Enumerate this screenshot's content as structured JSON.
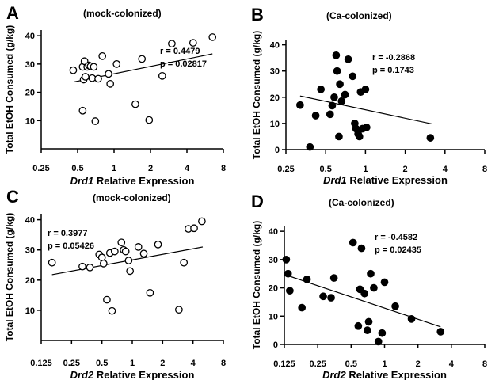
{
  "chart_data": [
    {
      "type": "scatter",
      "panel": "A",
      "title": "(mock-colonized)",
      "gene": "Drd1",
      "xlabel_suffix": " Relative Expression",
      "ylabel": "Total EtOH Consumed (g/kg)",
      "x_scale": "log2",
      "xlim": [
        0.25,
        8
      ],
      "ylim": [
        0,
        42
      ],
      "x_ticks": [
        0.25,
        0.5,
        1,
        2,
        4,
        8
      ],
      "x_tick_labels": [
        "0.25",
        "0.5",
        "1",
        "2",
        "4",
        "8"
      ],
      "y_ticks": [
        10,
        20,
        30,
        40
      ],
      "y_tick_labels": [
        "10",
        "20",
        "30",
        "40"
      ],
      "marker": "open",
      "r_label": "r = 0.4479",
      "p_label": "p = 0.02817",
      "fit": {
        "x": [
          0.47,
          6.5
        ],
        "y": [
          23.7,
          33.6
        ]
      },
      "points": [
        {
          "x": 0.46,
          "y": 27.8
        },
        {
          "x": 0.55,
          "y": 29.0
        },
        {
          "x": 0.56,
          "y": 24.5
        },
        {
          "x": 0.57,
          "y": 31.0
        },
        {
          "x": 0.58,
          "y": 25.5
        },
        {
          "x": 0.6,
          "y": 29.0
        },
        {
          "x": 0.62,
          "y": 29.5
        },
        {
          "x": 0.64,
          "y": 29.2
        },
        {
          "x": 0.66,
          "y": 25.0
        },
        {
          "x": 0.68,
          "y": 29.0
        },
        {
          "x": 0.74,
          "y": 24.8
        },
        {
          "x": 0.8,
          "y": 32.8
        },
        {
          "x": 0.9,
          "y": 26.5
        },
        {
          "x": 0.93,
          "y": 23.0
        },
        {
          "x": 1.05,
          "y": 30.0
        },
        {
          "x": 0.55,
          "y": 13.5
        },
        {
          "x": 0.7,
          "y": 9.8
        },
        {
          "x": 1.5,
          "y": 15.8
        },
        {
          "x": 1.7,
          "y": 31.8
        },
        {
          "x": 1.95,
          "y": 10.2
        },
        {
          "x": 2.5,
          "y": 25.8
        },
        {
          "x": 3.0,
          "y": 37.2
        },
        {
          "x": 4.5,
          "y": 37.5
        },
        {
          "x": 6.5,
          "y": 39.5
        }
      ]
    },
    {
      "type": "scatter",
      "panel": "B",
      "title": "(Ca-colonized)",
      "gene": "Drd1",
      "xlabel_suffix": " Relative Expression",
      "ylabel": "Total EtOH Consumed (g/kg)",
      "x_scale": "log2",
      "xlim": [
        0.25,
        8
      ],
      "ylim": [
        0,
        42
      ],
      "x_ticks": [
        0.25,
        0.5,
        1,
        2,
        4,
        8
      ],
      "x_tick_labels": [
        "0.25",
        "0.5",
        "1",
        "2",
        "4",
        "8"
      ],
      "y_ticks": [
        0,
        10,
        20,
        30,
        40
      ],
      "y_tick_labels": [
        "0",
        "10",
        "20",
        "30",
        "40"
      ],
      "marker": "filled",
      "r_label": "r = -0.2868",
      "p_label": "p = 0.1743",
      "fit": {
        "x": [
          0.32,
          3.2
        ],
        "y": [
          20.5,
          9.8
        ]
      },
      "points": [
        {
          "x": 0.32,
          "y": 17.0
        },
        {
          "x": 0.38,
          "y": 1.0
        },
        {
          "x": 0.42,
          "y": 13.0
        },
        {
          "x": 0.46,
          "y": 23.0
        },
        {
          "x": 0.54,
          "y": 13.5
        },
        {
          "x": 0.56,
          "y": 16.8
        },
        {
          "x": 0.58,
          "y": 20.0
        },
        {
          "x": 0.6,
          "y": 36.0
        },
        {
          "x": 0.61,
          "y": 30.0
        },
        {
          "x": 0.63,
          "y": 5.0
        },
        {
          "x": 0.64,
          "y": 25.0
        },
        {
          "x": 0.66,
          "y": 18.5
        },
        {
          "x": 0.7,
          "y": 21.0
        },
        {
          "x": 0.74,
          "y": 34.5
        },
        {
          "x": 0.8,
          "y": 28.0
        },
        {
          "x": 0.83,
          "y": 10.0
        },
        {
          "x": 0.85,
          "y": 8.0
        },
        {
          "x": 0.88,
          "y": 6.0
        },
        {
          "x": 0.9,
          "y": 5.0
        },
        {
          "x": 0.92,
          "y": 22.0
        },
        {
          "x": 0.95,
          "y": 8.0
        },
        {
          "x": 1.0,
          "y": 23.0
        },
        {
          "x": 1.02,
          "y": 8.5
        },
        {
          "x": 3.1,
          "y": 4.5
        }
      ]
    },
    {
      "type": "scatter",
      "panel": "C",
      "title": "(mock-colonized)",
      "gene": "Drd2",
      "xlabel_suffix": " Relative Expression",
      "ylabel": "Total EtOH Consumed (g/kg)",
      "x_scale": "log2",
      "xlim": [
        0.125,
        8
      ],
      "ylim": [
        0,
        42
      ],
      "x_ticks": [
        0.125,
        0.25,
        0.5,
        1,
        2,
        4,
        8
      ],
      "x_tick_labels": [
        "0.125",
        "0.25",
        "0.5",
        "1",
        "2",
        "4",
        "8"
      ],
      "y_ticks": [
        10,
        20,
        30,
        40
      ],
      "y_tick_labels": [
        "10",
        "20",
        "30",
        "40"
      ],
      "marker": "open",
      "r_label": "r = 0.3977",
      "p_label": "p = 0.05426",
      "fit": {
        "x": [
          0.16,
          5.0
        ],
        "y": [
          21.8,
          31.0
        ]
      },
      "points": [
        {
          "x": 0.16,
          "y": 25.8
        },
        {
          "x": 0.32,
          "y": 24.5
        },
        {
          "x": 0.38,
          "y": 24.2
        },
        {
          "x": 0.47,
          "y": 28.5
        },
        {
          "x": 0.5,
          "y": 27.5
        },
        {
          "x": 0.52,
          "y": 25.5
        },
        {
          "x": 0.56,
          "y": 13.5
        },
        {
          "x": 0.6,
          "y": 29.0
        },
        {
          "x": 0.63,
          "y": 9.8
        },
        {
          "x": 0.67,
          "y": 29.5
        },
        {
          "x": 0.78,
          "y": 32.5
        },
        {
          "x": 0.82,
          "y": 30.0
        },
        {
          "x": 0.86,
          "y": 29.5
        },
        {
          "x": 0.92,
          "y": 26.5
        },
        {
          "x": 0.95,
          "y": 23.0
        },
        {
          "x": 1.15,
          "y": 31.0
        },
        {
          "x": 1.3,
          "y": 28.8
        },
        {
          "x": 1.5,
          "y": 15.8
        },
        {
          "x": 1.8,
          "y": 31.8
        },
        {
          "x": 2.9,
          "y": 10.2
        },
        {
          "x": 3.25,
          "y": 25.8
        },
        {
          "x": 3.6,
          "y": 37.0
        },
        {
          "x": 4.1,
          "y": 37.2
        },
        {
          "x": 4.9,
          "y": 39.5
        }
      ]
    },
    {
      "type": "scatter",
      "panel": "D",
      "title": "(Ca-colonized)",
      "gene": "Drd2",
      "xlabel_suffix": " Relative Expression",
      "ylabel": "Total EtOH Consumed (g/kg)",
      "x_scale": "log2",
      "xlim": [
        0.125,
        8
      ],
      "ylim": [
        0,
        42
      ],
      "x_ticks": [
        0.125,
        0.25,
        0.5,
        1,
        2,
        4,
        8
      ],
      "x_tick_labels": [
        "0.125",
        "0.25",
        "0.5",
        "1",
        "2",
        "4",
        "8"
      ],
      "y_ticks": [
        0,
        10,
        20,
        30,
        40
      ],
      "y_tick_labels": [
        "0",
        "10",
        "20",
        "30",
        "40"
      ],
      "marker": "filled",
      "r_label": "r = -0.4582",
      "p_label": "p = 0.02435",
      "fit": {
        "x": [
          0.13,
          3.2
        ],
        "y": [
          24.5,
          6.2
        ]
      },
      "points": [
        {
          "x": 0.13,
          "y": 30.0
        },
        {
          "x": 0.135,
          "y": 25.0
        },
        {
          "x": 0.14,
          "y": 19.0
        },
        {
          "x": 0.18,
          "y": 13.0
        },
        {
          "x": 0.2,
          "y": 23.0
        },
        {
          "x": 0.28,
          "y": 17.0
        },
        {
          "x": 0.33,
          "y": 16.5
        },
        {
          "x": 0.35,
          "y": 23.5
        },
        {
          "x": 0.52,
          "y": 36.0
        },
        {
          "x": 0.58,
          "y": 6.5
        },
        {
          "x": 0.6,
          "y": 19.5
        },
        {
          "x": 0.62,
          "y": 34.0
        },
        {
          "x": 0.66,
          "y": 18.0
        },
        {
          "x": 0.7,
          "y": 5.0
        },
        {
          "x": 0.72,
          "y": 8.0
        },
        {
          "x": 0.75,
          "y": 25.0
        },
        {
          "x": 0.8,
          "y": 20.0
        },
        {
          "x": 0.88,
          "y": 1.0
        },
        {
          "x": 0.95,
          "y": 4.0
        },
        {
          "x": 1.0,
          "y": 22.0
        },
        {
          "x": 1.25,
          "y": 13.5
        },
        {
          "x": 1.75,
          "y": 9.0
        },
        {
          "x": 3.2,
          "y": 4.5
        }
      ]
    }
  ]
}
